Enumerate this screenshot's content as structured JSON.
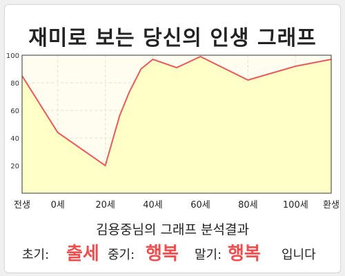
{
  "title": "재미로 보는 당신의 인생 그래프",
  "chart_data": {
    "type": "area",
    "title": "재미로 보는 당신의 인생 그래프",
    "x_labels": [
      "전생",
      "0세",
      "20세",
      "40세",
      "60세",
      "80세",
      "100세",
      "환생"
    ],
    "x_positions": [
      -15,
      0,
      20,
      40,
      60,
      80,
      100,
      115
    ],
    "xlim": [
      -15,
      115
    ],
    "ylim": [
      0,
      100
    ],
    "y_ticks": [
      20,
      40,
      60,
      80,
      100
    ],
    "grid": true,
    "series": [
      {
        "x": [
          -15,
          0,
          20,
          26,
          30,
          35,
          40,
          50,
          60,
          80,
          100,
          115
        ],
        "y": [
          85,
          44,
          20,
          56,
          73,
          90,
          97,
          91,
          99,
          82,
          92,
          97
        ]
      }
    ],
    "line_color": "#e85a5a",
    "fill_color": "#ffffc8"
  },
  "summary": {
    "subtitle": "김용중님의 그래프 분석결과",
    "early_label": "초기:",
    "early_value": "출세",
    "mid_label": "중기:",
    "mid_value": "행복",
    "late_label": "말기:",
    "late_value": "행복",
    "ending": "입니다"
  }
}
